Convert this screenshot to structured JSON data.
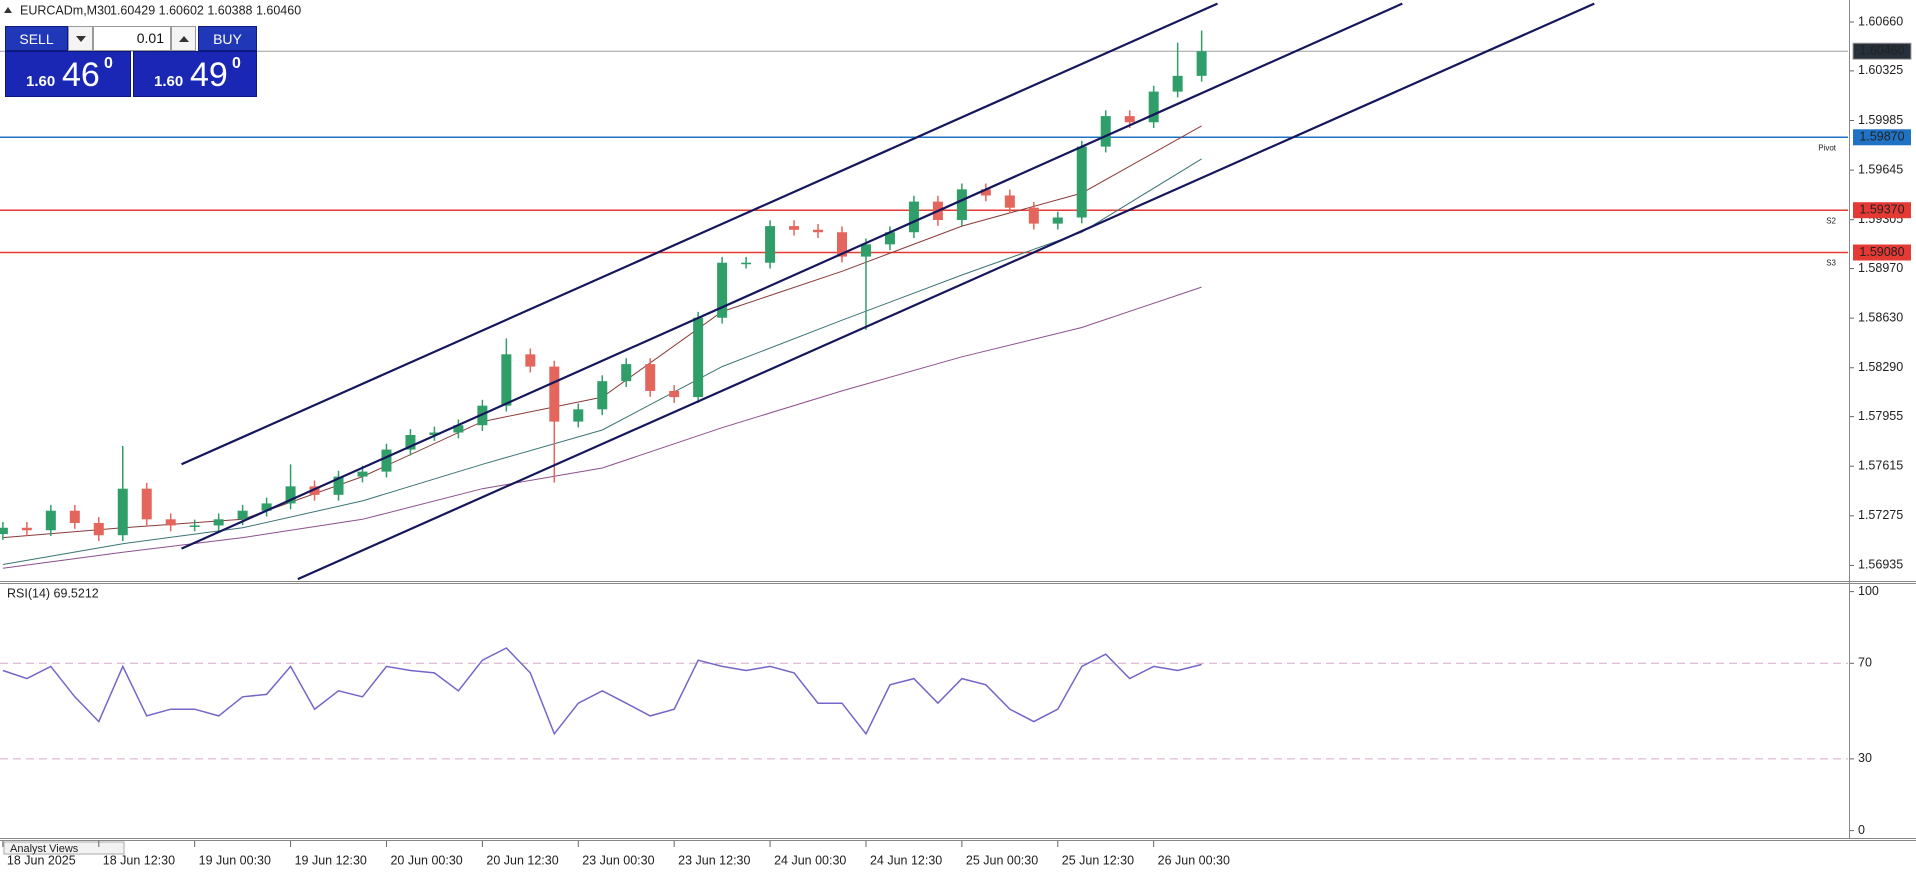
{
  "chart_data": [
    {
      "type": "candlestick",
      "title": "EURCADm,M30",
      "subtitle": "1.60429 1.60602 1.60388 1.60460",
      "open": [
        1.5715,
        1.57193,
        1.57176,
        1.5731,
        1.57226,
        1.57142,
        1.57461,
        1.57251,
        1.57209,
        1.57209,
        1.57251,
        1.5731,
        1.5736,
        1.57477,
        1.57419,
        1.57544,
        1.57578,
        1.57729,
        1.57829,
        1.57846,
        1.57896,
        1.5803,
        1.58382,
        1.58298,
        1.57921,
        1.58005,
        1.58198,
        1.58315,
        1.58131,
        1.58089,
        1.58633,
        1.5901,
        1.5901,
        1.59261,
        1.59236,
        1.59219,
        1.59052,
        1.59136,
        1.59219,
        1.59429,
        1.59303,
        1.59513,
        1.59471,
        1.59387,
        1.59278,
        1.5932,
        1.59806,
        1.60015,
        1.59973,
        1.60183,
        1.60291
      ],
      "high": [
        1.57233,
        1.57233,
        1.5735,
        1.5735,
        1.57266,
        1.57754,
        1.57501,
        1.57291,
        1.57249,
        1.57291,
        1.5735,
        1.574,
        1.57628,
        1.57517,
        1.57584,
        1.57618,
        1.57769,
        1.57869,
        1.57886,
        1.57936,
        1.5807,
        1.58491,
        1.58422,
        1.58338,
        1.58045,
        1.58238,
        1.58355,
        1.58355,
        1.58171,
        1.58673,
        1.5905,
        1.5905,
        1.59301,
        1.59301,
        1.59276,
        1.59259,
        1.59176,
        1.59259,
        1.59469,
        1.59469,
        1.59553,
        1.59553,
        1.59511,
        1.59427,
        1.5936,
        1.59846,
        1.60055,
        1.60055,
        1.60223,
        1.60518,
        1.60602
      ],
      "low": [
        1.5711,
        1.57136,
        1.57136,
        1.57186,
        1.57102,
        1.57102,
        1.57211,
        1.57169,
        1.57169,
        1.57169,
        1.57211,
        1.5727,
        1.5732,
        1.57379,
        1.57379,
        1.57504,
        1.57538,
        1.57689,
        1.57789,
        1.57806,
        1.57856,
        1.5799,
        1.58258,
        1.57503,
        1.57881,
        1.57965,
        1.58158,
        1.58091,
        1.58049,
        1.58049,
        1.58593,
        1.5897,
        1.5897,
        1.59196,
        1.59179,
        1.59012,
        1.5855,
        1.59096,
        1.59179,
        1.59263,
        1.59263,
        1.59431,
        1.59347,
        1.59238,
        1.59238,
        1.5928,
        1.59766,
        1.59933,
        1.59933,
        1.60143,
        1.60251
      ],
      "close": [
        1.57193,
        1.57176,
        1.5731,
        1.57226,
        1.57142,
        1.57461,
        1.57251,
        1.57209,
        1.57209,
        1.57251,
        1.5731,
        1.5736,
        1.57477,
        1.57419,
        1.57544,
        1.57578,
        1.57729,
        1.57829,
        1.57846,
        1.57896,
        1.5803,
        1.58382,
        1.58298,
        1.57921,
        1.58005,
        1.58198,
        1.58315,
        1.58131,
        1.58089,
        1.58633,
        1.5901,
        1.5901,
        1.59261,
        1.59236,
        1.59219,
        1.59052,
        1.59136,
        1.59219,
        1.59429,
        1.59303,
        1.59513,
        1.59471,
        1.59387,
        1.59278,
        1.5932,
        1.59806,
        1.60015,
        1.59973,
        1.60183,
        1.60291,
        1.6046
      ],
      "up_color": "#2f9e68",
      "down_color": "#e4655c",
      "ylim": [
        1.56835,
        1.60811
      ],
      "yticks": [
        {
          "value": 1.6066,
          "label": "1.60660"
        },
        1.60325,
        1.59985,
        1.59645,
        1.59305,
        {
          "value": 1.5897,
          "label": "1.58970"
        },
        {
          "value": 1.5863,
          "label": "1.58630"
        },
        {
          "value": 1.5829,
          "label": "1.58290"
        },
        1.57955,
        1.57615,
        1.57275,
        1.56935
      ],
      "xlim": [
        -0.12,
        76.96
      ],
      "xticks": [
        {
          "value": 0,
          "label": "18 Jun 2025"
        },
        {
          "value": 4,
          "label": "18 Jun 12:30"
        },
        {
          "value": 8,
          "label": "19 Jun 00:30"
        },
        {
          "value": 12,
          "label": "19 Jun 12:30"
        },
        {
          "value": 16,
          "label": "20 Jun 00:30"
        },
        {
          "value": 20,
          "label": "20 Jun 12:30"
        },
        {
          "value": 24,
          "label": "23 Jun 00:30"
        },
        {
          "value": 28,
          "label": "23 Jun 12:30"
        },
        {
          "value": 32,
          "label": "24 Jun 00:30"
        },
        {
          "value": 36,
          "label": "24 Jun 12:30"
        },
        {
          "value": 40,
          "label": "25 Jun 00:30"
        },
        {
          "value": 44,
          "label": "25 Jun 12:30"
        },
        {
          "value": 48,
          "label": "26 Jun 00:30"
        }
      ],
      "moving_averages": [
        {
          "color": "#8b3a3a",
          "x": [
            0,
            5,
            10,
            15,
            20,
            25,
            30,
            35,
            40,
            45,
            50
          ],
          "values": [
            1.57126,
            1.57193,
            1.57251,
            1.57544,
            1.57921,
            1.58089,
            1.58675,
            1.58951,
            1.59261,
            1.59487,
            1.59948
          ]
        },
        {
          "color": "#3c7474",
          "x": [
            0,
            5,
            10,
            15,
            20,
            25,
            30,
            35,
            40,
            45,
            50
          ],
          "values": [
            1.56941,
            1.57084,
            1.57193,
            1.57377,
            1.57628,
            1.57863,
            1.58298,
            1.58616,
            1.58926,
            1.59219,
            1.59722
          ]
        },
        {
          "color": "#8d4f8d",
          "x": [
            0,
            5,
            10,
            15,
            20,
            25,
            30,
            35,
            40,
            45,
            50
          ],
          "values": [
            1.56916,
            1.57025,
            1.57126,
            1.57251,
            1.57461,
            1.57603,
            1.57879,
            1.58131,
            1.58365,
            1.58566,
            1.58843
          ]
        }
      ],
      "channel_color": "#16165c",
      "channel_lines": [
        {
          "x": [
            7.45,
            50.66
          ],
          "values": [
            1.57628,
            1.60786
          ]
        },
        {
          "x": [
            7.45,
            58.37
          ],
          "values": [
            1.5705,
            1.60786
          ]
        },
        {
          "x": [
            12.3,
            66.38
          ],
          "values": [
            1.56841,
            1.60786
          ]
        }
      ],
      "levels": [
        {
          "name": "Pivot",
          "value": 1.5987,
          "label": "1.59870",
          "color": "#1f72c4"
        },
        {
          "name": "S2",
          "value": 1.5937,
          "label": "1.59370",
          "color": "#e53935"
        },
        {
          "name": "S3",
          "value": 1.5908,
          "label": "1.59080",
          "color": "#e53935"
        }
      ],
      "last_price": {
        "value": 1.6046,
        "label": "1.60460",
        "color": "#a0a0a0"
      }
    },
    {
      "type": "line",
      "title": "RSI(14) 69.5212",
      "series": [
        {
          "color": "#7466c8",
          "values": [
            67,
            63.6,
            68.7,
            56,
            45.6,
            68.7,
            48,
            50.8,
            50.8,
            48,
            56,
            57,
            68.7,
            50.8,
            58.5,
            56,
            68.7,
            67,
            66,
            58.5,
            71.3,
            76.4,
            66,
            40.5,
            53.3,
            58.5,
            53.3,
            48,
            50.8,
            71.3,
            68.7,
            67,
            68.7,
            66,
            53.3,
            53.3,
            40.5,
            61,
            63.6,
            53.3,
            63.6,
            61,
            50.8,
            45.6,
            50.8,
            68.7,
            73.8,
            63.6,
            68.7,
            67,
            69.5
          ]
        }
      ],
      "ylim": [
        -3.1,
        103.6
      ],
      "yticks": [
        100,
        70,
        30,
        0
      ],
      "levels": [
        70,
        30
      ],
      "levels_color": "#d6a9c8"
    }
  ],
  "trade_panel": {
    "sell": "SELL",
    "lot": "0.01",
    "buy": "BUY",
    "bid_big": "1.60",
    "bid_digits": "46",
    "bid_point": "0",
    "ask_big": "1.60",
    "ask_digits": "49",
    "ask_point": "0"
  },
  "footer_tab": "Analyst Views"
}
